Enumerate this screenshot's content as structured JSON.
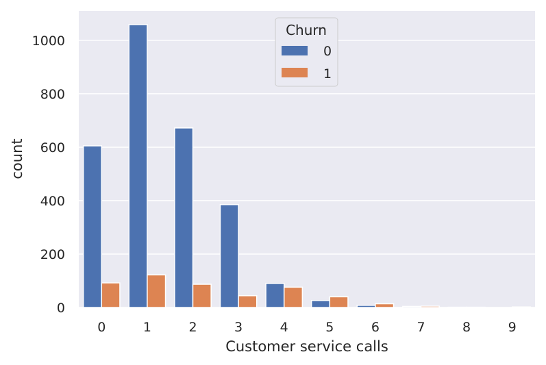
{
  "chart_data": {
    "type": "bar",
    "xlabel": "Customer service calls",
    "ylabel": "count",
    "categories": [
      "0",
      "1",
      "2",
      "3",
      "4",
      "5",
      "6",
      "7",
      "8",
      "9"
    ],
    "series": [
      {
        "name": "0",
        "color": "#4c72b0",
        "values": [
          605,
          1059,
          672,
          385,
          90,
          26,
          8,
          4,
          1,
          0
        ]
      },
      {
        "name": "1",
        "color": "#dd8452",
        "values": [
          92,
          122,
          87,
          44,
          76,
          40,
          14,
          5,
          1,
          2
        ]
      }
    ],
    "ylim": [
      0,
      1110
    ],
    "yticks": [
      0,
      200,
      400,
      600,
      800,
      1000
    ],
    "grid": true,
    "legend": {
      "title": "Churn",
      "placement": "top-center"
    }
  }
}
